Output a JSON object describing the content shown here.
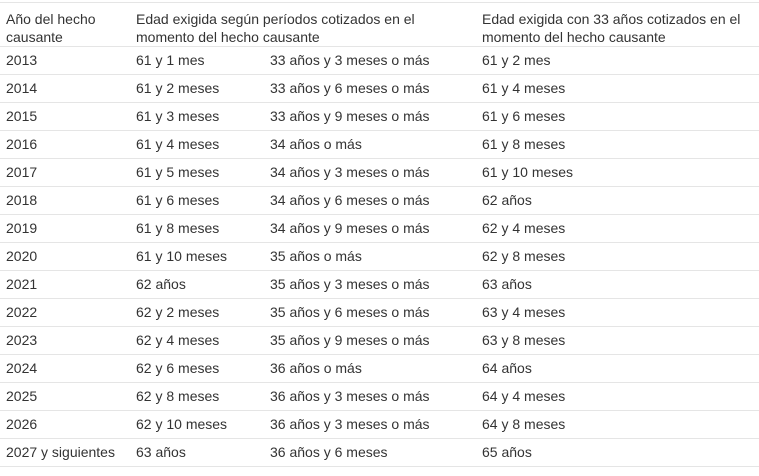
{
  "table": {
    "headers": [
      "Año del hecho causante",
      "Edad exigida según períodos cotizados en el momento del hecho causante",
      "Edad exigida con 33 años cotizados en el momento del hecho causante"
    ],
    "rows": [
      [
        "2013",
        "61 y 1 mes",
        "33 años y 3 meses o más",
        "61 y 2 mes"
      ],
      [
        "2014",
        "61 y 2 meses",
        "33 años y 6 meses o más",
        "61 y 4 meses"
      ],
      [
        "2015",
        "61 y 3 meses",
        "33 años y 9 meses o más",
        "61 y 6 meses"
      ],
      [
        "2016",
        "61 y 4 meses",
        "34 años o más",
        "61 y 8 meses"
      ],
      [
        "2017",
        "61 y 5 meses",
        "34 años y 3 meses o más",
        "61 y 10 meses"
      ],
      [
        "2018",
        "61 y 6 meses",
        "34 años y 6 meses o más",
        "62 años"
      ],
      [
        "2019",
        "61 y 8 meses",
        "34 años y 9 meses o más",
        "62 y 4 meses"
      ],
      [
        "2020",
        "61 y 10 meses",
        "35 años o más",
        "62 y 8 meses"
      ],
      [
        "2021",
        "62 años",
        "35 años y 3 meses o más",
        "63 años"
      ],
      [
        "2022",
        "62 y 2 meses",
        "35 años y 6 meses o más",
        "63 y 4 meses"
      ],
      [
        "2023",
        "62 y 4 meses",
        "35 años y 9 meses o más",
        "63 y 8 meses"
      ],
      [
        "2024",
        "62 y 6 meses",
        "36 años o más",
        "64 años"
      ],
      [
        "2025",
        "62 y 8 meses",
        "36 años y 3 meses o más",
        "64 y 4 meses"
      ],
      [
        "2026",
        "62 y 10 meses",
        "36 años y 3 meses o más",
        "64 y 8 meses"
      ],
      [
        "2027 y siguientes",
        "63 años",
        "36 años y 6 meses",
        "65 años"
      ]
    ]
  }
}
